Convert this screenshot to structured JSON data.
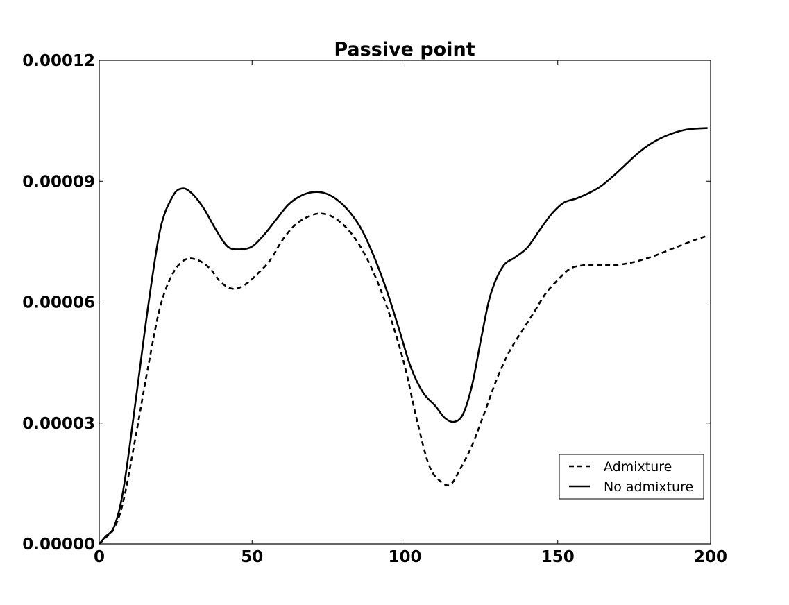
{
  "chart_data": {
    "type": "line",
    "title": "Passive point",
    "xlabel": "",
    "ylabel": "",
    "xlim": [
      0,
      200
    ],
    "ylim": [
      0,
      0.00012
    ],
    "x_ticks": [
      "0",
      "50",
      "100",
      "150",
      "200"
    ],
    "y_ticks": [
      "0.00000",
      "0.00003",
      "0.00006",
      "0.00009",
      "0.00012"
    ],
    "grid": false,
    "legend_position": "lower-right",
    "series": [
      {
        "name": "Admixture",
        "style": "dashed",
        "color": "#000000",
        "points": [
          [
            0,
            0.0
          ],
          [
            2,
            1.5e-06
          ],
          [
            5,
            4e-06
          ],
          [
            8,
            1.1e-05
          ],
          [
            12,
            2.7e-05
          ],
          [
            16,
            4.4e-05
          ],
          [
            20,
            5.9e-05
          ],
          [
            24,
            6.7e-05
          ],
          [
            28,
            7.05e-05
          ],
          [
            32,
            7.05e-05
          ],
          [
            36,
            6.85e-05
          ],
          [
            40,
            6.48e-05
          ],
          [
            44,
            6.33e-05
          ],
          [
            48,
            6.45e-05
          ],
          [
            52,
            6.72e-05
          ],
          [
            56,
            7.05e-05
          ],
          [
            60,
            7.55e-05
          ],
          [
            64,
            7.91e-05
          ],
          [
            68,
            8.11e-05
          ],
          [
            72,
            8.2e-05
          ],
          [
            76,
            8.13e-05
          ],
          [
            80,
            7.91e-05
          ],
          [
            84,
            7.55e-05
          ],
          [
            88,
            7.02e-05
          ],
          [
            92,
            6.32e-05
          ],
          [
            96,
            5.45e-05
          ],
          [
            100,
            4.4e-05
          ],
          [
            104,
            3.05e-05
          ],
          [
            108,
            1.93e-05
          ],
          [
            112,
            1.53e-05
          ],
          [
            115,
            1.48e-05
          ],
          [
            118,
            1.85e-05
          ],
          [
            122,
            2.45e-05
          ],
          [
            126,
            3.25e-05
          ],
          [
            130,
            4.08e-05
          ],
          [
            134,
            4.75e-05
          ],
          [
            138,
            5.25e-05
          ],
          [
            142,
            5.72e-05
          ],
          [
            146,
            6.21e-05
          ],
          [
            150,
            6.55e-05
          ],
          [
            154,
            6.83e-05
          ],
          [
            158,
            6.91e-05
          ],
          [
            162,
            6.92e-05
          ],
          [
            166,
            6.92e-05
          ],
          [
            170,
            6.93e-05
          ],
          [
            174,
            6.98e-05
          ],
          [
            178,
            7.06e-05
          ],
          [
            182,
            7.16e-05
          ],
          [
            186,
            7.28e-05
          ],
          [
            190,
            7.4e-05
          ],
          [
            194,
            7.52e-05
          ],
          [
            199,
            7.65e-05
          ]
        ]
      },
      {
        "name": "No admixture",
        "style": "solid",
        "color": "#000000",
        "points": [
          [
            0,
            0.0
          ],
          [
            2,
            1.8e-06
          ],
          [
            5,
            4.5e-06
          ],
          [
            8,
            1.4e-05
          ],
          [
            12,
            3.6e-05
          ],
          [
            16,
            5.9e-05
          ],
          [
            20,
            7.82e-05
          ],
          [
            24,
            8.62e-05
          ],
          [
            27,
            8.82e-05
          ],
          [
            30,
            8.72e-05
          ],
          [
            34,
            8.35e-05
          ],
          [
            38,
            7.82e-05
          ],
          [
            42,
            7.38e-05
          ],
          [
            46,
            7.31e-05
          ],
          [
            50,
            7.38e-05
          ],
          [
            54,
            7.68e-05
          ],
          [
            58,
            8.06e-05
          ],
          [
            62,
            8.43e-05
          ],
          [
            66,
            8.64e-05
          ],
          [
            70,
            8.73e-05
          ],
          [
            74,
            8.7e-05
          ],
          [
            78,
            8.53e-05
          ],
          [
            82,
            8.23e-05
          ],
          [
            86,
            7.78e-05
          ],
          [
            90,
            7.11e-05
          ],
          [
            94,
            6.3e-05
          ],
          [
            98,
            5.35e-05
          ],
          [
            102,
            4.37e-05
          ],
          [
            106,
            3.75e-05
          ],
          [
            110,
            3.42e-05
          ],
          [
            113,
            3.13e-05
          ],
          [
            116,
            3.03e-05
          ],
          [
            119,
            3.22e-05
          ],
          [
            122,
            3.95e-05
          ],
          [
            125,
            5.12e-05
          ],
          [
            128,
            6.18e-05
          ],
          [
            132,
            6.88e-05
          ],
          [
            136,
            7.11e-05
          ],
          [
            140,
            7.35e-05
          ],
          [
            144,
            7.78e-05
          ],
          [
            148,
            8.19e-05
          ],
          [
            152,
            8.47e-05
          ],
          [
            156,
            8.57e-05
          ],
          [
            160,
            8.7e-05
          ],
          [
            164,
            8.87e-05
          ],
          [
            168,
            9.12e-05
          ],
          [
            172,
            9.4e-05
          ],
          [
            176,
            9.68e-05
          ],
          [
            180,
            9.91e-05
          ],
          [
            184,
            0.0001008
          ],
          [
            188,
            0.000102
          ],
          [
            192,
            0.0001028
          ],
          [
            196,
            0.0001031
          ],
          [
            199,
            0.0001032
          ]
        ]
      }
    ]
  }
}
